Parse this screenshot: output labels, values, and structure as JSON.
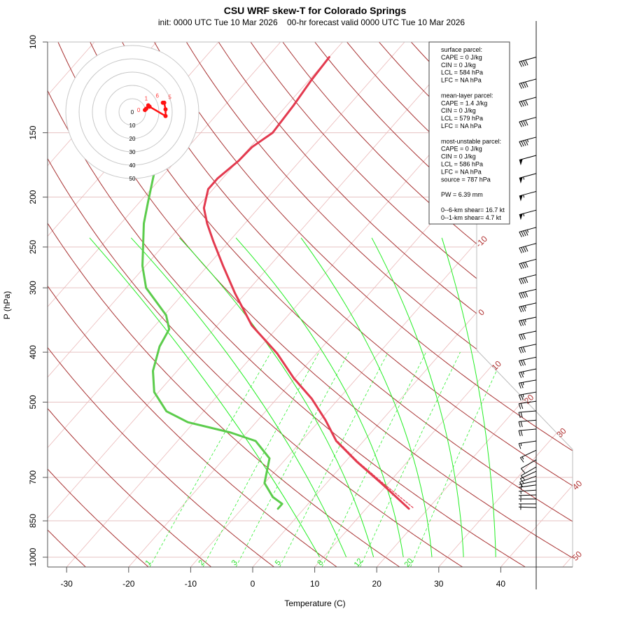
{
  "header": {
    "title": "CSU WRF skew-T for Colorado Springs",
    "subtitle": "init: 0000 UTC Tue 10 Mar 2026    00-hr forecast valid 0000 UTC Tue 10 Mar 2026"
  },
  "info_box": {
    "lines": [
      "surface parcel:",
      "CAPE = 0 J/kg",
      "CIN = 0 J/kg",
      "LCL = 584 hPa",
      "LFC = NA hPa",
      "",
      "mean-layer parcel:",
      "CAPE = 1.4 J/kg",
      "CIN = 0 J/kg",
      "LCL = 579 hPa",
      "LFC = NA hPa",
      "",
      "most-unstable parcel:",
      "CAPE = 0 J/kg",
      "CIN = 0 J/kg",
      "LCL = 586 hPa",
      "LFC = NA hPa",
      "source = 787 hPa",
      "",
      "PW =  6.39 mm",
      "",
      "0--6-km shear= 16.7 kt",
      "0--1-km shear= 4.7 kt"
    ]
  },
  "chart_data": {
    "type": "line",
    "subtype": "skew-T log-P",
    "xlabel": "Temperature (C)",
    "ylabel": "P (hPa)",
    "y_scale": "log",
    "ylim": [
      1044,
      100
    ],
    "x_ticks": [
      -30,
      -20,
      -10,
      0,
      10,
      20,
      30,
      40
    ],
    "y_ticks": [
      100,
      150,
      200,
      250,
      300,
      400,
      500,
      700,
      850,
      1000
    ],
    "isotherm_labels": [
      "-10",
      "0",
      "10",
      "20",
      "30",
      "40",
      "50"
    ],
    "mixing_ratio_labels": [
      "1",
      "2",
      "3",
      "5",
      "8",
      "12",
      "20"
    ],
    "mixing_ratio_top_hPa": 400,
    "dry_adiabat_theta_step_C": 10,
    "moist_adiabats": [
      {
        "t1000": 9.4,
        "t500": -28.6,
        "t240": -73
      },
      {
        "t1000": 13.7,
        "t500": -22,
        "t240": -66.3
      },
      {
        "t1000": 18.1,
        "t500": -14.9,
        "t240": -58.5
      },
      {
        "t1000": 22.9,
        "t500": -7.5,
        "t240": -49.4
      },
      {
        "t1000": 27.5,
        "t500": -0.6,
        "t240": -38.9
      },
      {
        "t1000": 32.6,
        "t500": 6.5,
        "t240": -27.5
      },
      {
        "t1000": 37.8,
        "t500": 13.4,
        "t240": -16.2
      }
    ],
    "series": [
      {
        "key": "temperature",
        "color": "#e33a4f",
        "p": [
          805,
          718,
          653,
          595,
          542,
          493,
          449,
          402,
          355,
          308,
          272,
          244,
          225,
          210,
          193,
          184,
          170,
          160,
          150,
          133,
          119,
          107
        ],
        "t": [
          16.9,
          8.8,
          1.9,
          -4.4,
          -9.1,
          -14.3,
          -20.2,
          -26.4,
          -34.4,
          -41.6,
          -47.5,
          -52.5,
          -56.1,
          -58.8,
          -60.8,
          -60.8,
          -59.9,
          -59.7,
          -58.4,
          -58.9,
          -59.6,
          -60.0
        ]
      },
      {
        "key": "dewpoint",
        "color": "#5ccc4c",
        "p": [
          805,
          788,
          764,
          718,
          643,
          595,
          573,
          547,
          521,
          478,
          435,
          390,
          361,
          339,
          300,
          272,
          225,
          205,
          181
        ],
        "t": [
          -4.2,
          -4.2,
          -6.7,
          -10.0,
          -12.7,
          -17.4,
          -22.6,
          -31.0,
          -36.0,
          -40.7,
          -43.9,
          -46.3,
          -47.2,
          -49.7,
          -56.8,
          -60.5,
          -66.3,
          -68.6,
          -71.6
        ]
      },
      {
        "key": "parcel",
        "color": "#e33a4f",
        "dashed": true,
        "p": [
          801,
          718,
          653,
          595
        ],
        "t": [
          17.4,
          9.1,
          2.1,
          -4.2
        ]
      }
    ],
    "winds_kt": [
      {
        "p": 107,
        "spd": 40,
        "dir": 255
      },
      {
        "p": 118,
        "spd": 40,
        "dir": 255
      },
      {
        "p": 128,
        "spd": 40,
        "dir": 255
      },
      {
        "p": 140,
        "spd": 40,
        "dir": 255
      },
      {
        "p": 153,
        "spd": 45,
        "dir": 255
      },
      {
        "p": 166,
        "spd": 50,
        "dir": 255
      },
      {
        "p": 180,
        "spd": 55,
        "dir": 255
      },
      {
        "p": 195,
        "spd": 55,
        "dir": 255
      },
      {
        "p": 212,
        "spd": 55,
        "dir": 255
      },
      {
        "p": 229,
        "spd": 45,
        "dir": 255
      },
      {
        "p": 246,
        "spd": 40,
        "dir": 255
      },
      {
        "p": 264,
        "spd": 40,
        "dir": 255
      },
      {
        "p": 283,
        "spd": 40,
        "dir": 256
      },
      {
        "p": 302,
        "spd": 40,
        "dir": 257
      },
      {
        "p": 321,
        "spd": 35,
        "dir": 257
      },
      {
        "p": 342,
        "spd": 35,
        "dir": 258
      },
      {
        "p": 364,
        "spd": 30,
        "dir": 258
      },
      {
        "p": 386,
        "spd": 30,
        "dir": 258
      },
      {
        "p": 409,
        "spd": 30,
        "dir": 258
      },
      {
        "p": 431,
        "spd": 25,
        "dir": 258
      },
      {
        "p": 453,
        "spd": 25,
        "dir": 260
      },
      {
        "p": 478,
        "spd": 25,
        "dir": 260
      },
      {
        "p": 498,
        "spd": 20,
        "dir": 262
      },
      {
        "p": 520,
        "spd": 20,
        "dir": 265
      },
      {
        "p": 542,
        "spd": 20,
        "dir": 265
      },
      {
        "p": 564,
        "spd": 20,
        "dir": 265
      },
      {
        "p": 595,
        "spd": 15,
        "dir": 262
      },
      {
        "p": 620,
        "spd": 15,
        "dir": 245
      },
      {
        "p": 647,
        "spd": 10,
        "dir": 240
      },
      {
        "p": 668,
        "spd": 10,
        "dir": 240
      },
      {
        "p": 681,
        "spd": 10,
        "dir": 245
      },
      {
        "p": 696,
        "spd": 10,
        "dir": 250
      },
      {
        "p": 711,
        "spd": 5,
        "dir": 258
      },
      {
        "p": 724,
        "spd": 5,
        "dir": 262
      },
      {
        "p": 741,
        "spd": 5,
        "dir": 266
      },
      {
        "p": 757,
        "spd": 5,
        "dir": 268
      },
      {
        "p": 771,
        "spd": 5,
        "dir": 270
      },
      {
        "p": 788,
        "spd": 5,
        "dir": 270
      },
      {
        "p": 801,
        "spd": 5,
        "dir": 272
      }
    ],
    "hodograph": {
      "ring_labels": [
        "0",
        "10",
        "20",
        "30",
        "40",
        "50"
      ],
      "points_kt": [
        {
          "u": 9.5,
          "v": 1.5,
          "label": "0"
        },
        {
          "u": 10.5,
          "v": 2.5,
          "label": ""
        },
        {
          "u": 12,
          "v": 5,
          "label": "1"
        },
        {
          "u": 13,
          "v": 4,
          "label": ""
        },
        {
          "u": 25,
          "v": -3,
          "label": ""
        },
        {
          "u": 25,
          "v": 2,
          "label": ""
        },
        {
          "u": 24,
          "v": 7,
          "label": "5"
        },
        {
          "u": 23,
          "v": 7,
          "label": "6"
        }
      ]
    }
  }
}
